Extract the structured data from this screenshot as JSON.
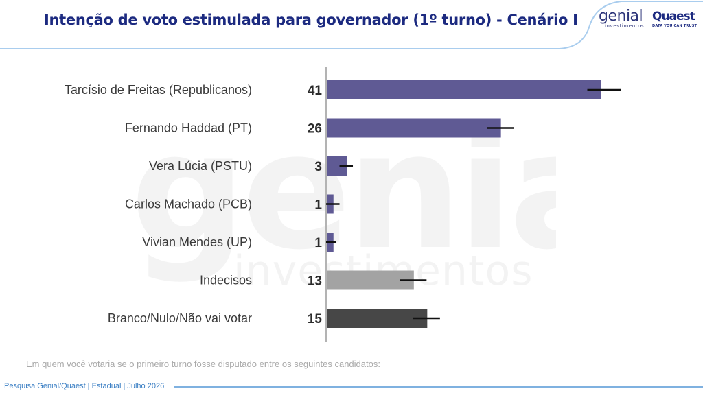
{
  "header": {
    "title": "Intenção de voto estimulada para governador (1º turno) - Cenário I",
    "logo_genial": "genial",
    "logo_genial_sub": "investimentos",
    "logo_quaest": "Quaest",
    "logo_quaest_sub": "DATA YOU CAN TRUST"
  },
  "watermark": {
    "word": "genial",
    "sub": "investimentos"
  },
  "chart_data": {
    "type": "bar",
    "orientation": "horizontal",
    "categories": [
      "Tarcísio de Freitas (Republicanos)",
      "Fernando Haddad (PT)",
      "Vera Lúcia (PSTU)",
      "Carlos Machado (PCB)",
      "Vivian Mendes (UP)",
      "Indecisos",
      "Branco/Nulo/Não vai votar"
    ],
    "values": [
      41,
      26,
      3,
      1,
      1,
      13,
      15
    ],
    "data_labels": [
      "41",
      "26",
      "3",
      "1",
      "1",
      "13",
      "15"
    ],
    "error_bars": [
      [
        39,
        44
      ],
      [
        24,
        28
      ],
      [
        2,
        4
      ],
      [
        0,
        2
      ],
      [
        0,
        1.5
      ],
      [
        11,
        15
      ],
      [
        13,
        17
      ]
    ],
    "colors": [
      "#5f5a94",
      "#5f5a94",
      "#5f5a94",
      "#5f5a94",
      "#5f5a94",
      "#a3a3a3",
      "#474747"
    ],
    "xlim": [
      0,
      50
    ],
    "grid": false,
    "legend": "none"
  },
  "footnote": "Em quem você votaria se o primeiro turno fosse disputado entre os seguintes candidatos:",
  "footer": "Pesquisa Genial/Quaest | Estadual | Julho 2026"
}
